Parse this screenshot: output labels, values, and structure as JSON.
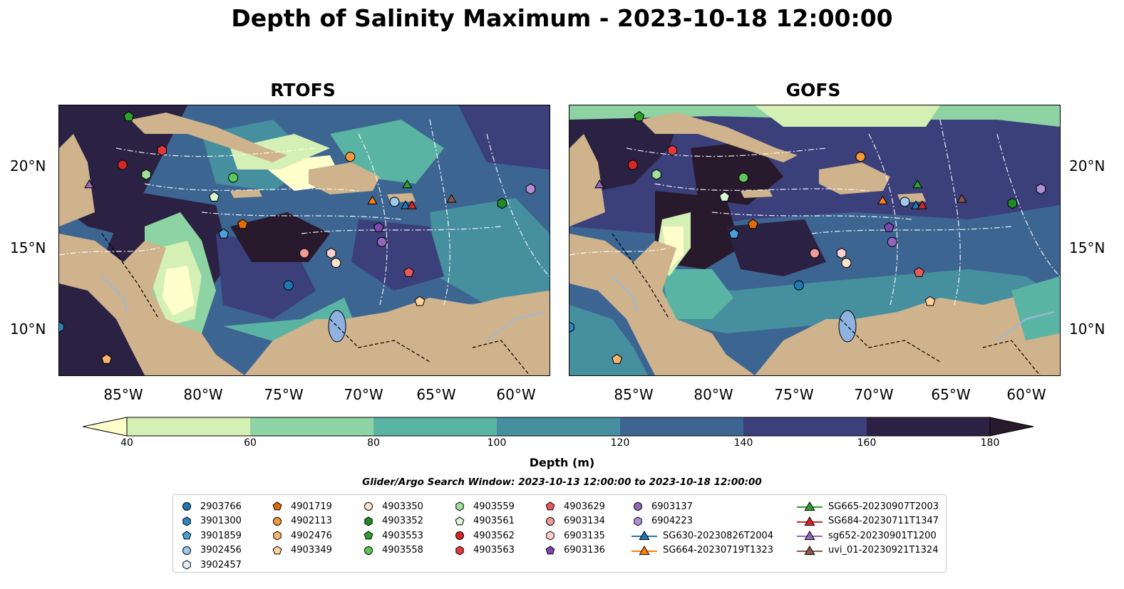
{
  "title": "Depth of Salinity Maximum - 2023-10-18 12:00:00",
  "panels": [
    {
      "title": "RTOFS"
    },
    {
      "title": "GOFS"
    }
  ],
  "y_ticks": [
    "20°N",
    "15°N",
    "10°N"
  ],
  "x_ticks": [
    "85°W",
    "80°W",
    "75°W",
    "70°W",
    "65°W",
    "60°W"
  ],
  "colorbar": {
    "label": "Depth (m)",
    "ticks": [
      "40",
      "60",
      "80",
      "100",
      "120",
      "140",
      "160",
      "180"
    ],
    "colors": [
      "#ffffcc",
      "#d4f0b4",
      "#8ed3a3",
      "#5ab4a4",
      "#468f9f",
      "#3d6592",
      "#3b3f7a",
      "#2b2142",
      "#281a2c"
    ]
  },
  "search_window": "Glider/Argo Search Window: 2023-10-13 12:00:00 to 2023-10-18 12:00:00",
  "legend": {
    "columns": [
      [
        {
          "label": "2903766",
          "marker": "circle",
          "color": "#1f77b4"
        },
        {
          "label": "3901300",
          "marker": "hexagon",
          "color": "#2e86c1"
        },
        {
          "label": "3901859",
          "marker": "pentagon",
          "color": "#4a9fd8"
        },
        {
          "label": "3902456",
          "marker": "circle",
          "color": "#9cc8ee"
        },
        {
          "label": "3902457",
          "marker": "hexagon",
          "color": "#dceefc"
        }
      ],
      [
        {
          "label": "4901719",
          "marker": "pentagon",
          "color": "#e06c00"
        },
        {
          "label": "4902113",
          "marker": "circle",
          "color": "#f59a3a"
        },
        {
          "label": "4902476",
          "marker": "hexagon",
          "color": "#f7b46a"
        },
        {
          "label": "4903349",
          "marker": "pentagon",
          "color": "#fcd39c"
        }
      ],
      [
        {
          "label": "4903350",
          "marker": "circle",
          "color": "#fde4c8"
        },
        {
          "label": "4903352",
          "marker": "hexagon",
          "color": "#1e8a2a"
        },
        {
          "label": "4903553",
          "marker": "pentagon",
          "color": "#2ca02c"
        },
        {
          "label": "4903558",
          "marker": "circle",
          "color": "#5cc85c"
        }
      ],
      [
        {
          "label": "4903559",
          "marker": "hexagon",
          "color": "#9ee09a"
        },
        {
          "label": "4903561",
          "marker": "pentagon",
          "color": "#d9f5d2"
        },
        {
          "label": "4903562",
          "marker": "circle",
          "color": "#d62728"
        },
        {
          "label": "4903563",
          "marker": "hexagon",
          "color": "#e03a3a"
        }
      ],
      [
        {
          "label": "4903629",
          "marker": "pentagon",
          "color": "#e85a5a"
        },
        {
          "label": "6903134",
          "marker": "circle",
          "color": "#f19a9a"
        },
        {
          "label": "6903135",
          "marker": "hexagon",
          "color": "#fcd0d0"
        },
        {
          "label": "6903136",
          "marker": "pentagon",
          "color": "#7b4ab0"
        }
      ],
      [
        {
          "label": "6903137",
          "marker": "circle",
          "color": "#9467bd"
        },
        {
          "label": "6904223",
          "marker": "hexagon",
          "color": "#b08fd6"
        },
        {
          "label": "SG630-20230826T2004",
          "marker": "triangle-line",
          "color": "#1f77b4"
        },
        {
          "label": "SG664-20230719T1323",
          "marker": "triangle-line",
          "color": "#ff7f0e"
        }
      ],
      [
        {
          "label": "SG665-20230907T2003",
          "marker": "triangle-line",
          "color": "#2ca02c"
        },
        {
          "label": "SG684-20230711T1347",
          "marker": "triangle-line",
          "color": "#d62728"
        },
        {
          "label": "sg652-20230901T1200",
          "marker": "triangle-line",
          "color": "#9467bd"
        },
        {
          "label": "uvi_01-20230921T1324",
          "marker": "triangle-line",
          "color": "#8c564b"
        }
      ]
    ]
  },
  "map_colors": {
    "land": "#cfb38c",
    "lake": "#8fb2e0",
    "river": "#9fb8d8"
  },
  "markers": [
    {
      "lon": -85.0,
      "lat": 20.1,
      "shape": "circle",
      "color": "#d62728"
    },
    {
      "lon": -82.5,
      "lat": 21.0,
      "shape": "hexagon",
      "color": "#e03a3a"
    },
    {
      "lon": -84.6,
      "lat": 23.1,
      "shape": "pentagon",
      "color": "#2ca02c"
    },
    {
      "lon": -83.5,
      "lat": 19.5,
      "shape": "hexagon",
      "color": "#9ee09a"
    },
    {
      "lon": -78.0,
      "lat": 19.3,
      "shape": "circle",
      "color": "#5cc85c"
    },
    {
      "lon": -79.2,
      "lat": 18.1,
      "shape": "pentagon",
      "color": "#d9f5d2"
    },
    {
      "lon": -70.6,
      "lat": 20.6,
      "shape": "circle",
      "color": "#f59a3a"
    },
    {
      "lon": -77.4,
      "lat": 16.4,
      "shape": "pentagon",
      "color": "#e06c00"
    },
    {
      "lon": -78.6,
      "lat": 15.8,
      "shape": "pentagon",
      "color": "#4a9fd8"
    },
    {
      "lon": -73.5,
      "lat": 14.6,
      "shape": "circle",
      "color": "#f19a9a"
    },
    {
      "lon": -71.8,
      "lat": 14.6,
      "shape": "hexagon",
      "color": "#fcd0d0"
    },
    {
      "lon": -71.5,
      "lat": 14.0,
      "shape": "circle",
      "color": "#fde4c8"
    },
    {
      "lon": -74.5,
      "lat": 12.6,
      "shape": "circle",
      "color": "#1f77b4"
    },
    {
      "lon": -68.8,
      "lat": 16.2,
      "shape": "pentagon",
      "color": "#7b4ab0"
    },
    {
      "lon": -68.6,
      "lat": 15.3,
      "shape": "circle",
      "color": "#9467bd"
    },
    {
      "lon": -67.8,
      "lat": 17.8,
      "shape": "circle",
      "color": "#9cc8ee"
    },
    {
      "lon": -66.9,
      "lat": 13.4,
      "shape": "pentagon",
      "color": "#e85a5a"
    },
    {
      "lon": -66.2,
      "lat": 11.6,
      "shape": "pentagon",
      "color": "#fcd39c"
    },
    {
      "lon": -61.0,
      "lat": 17.7,
      "shape": "hexagon",
      "color": "#1e8a2a"
    },
    {
      "lon": -59.2,
      "lat": 18.6,
      "shape": "hexagon",
      "color": "#b08fd6"
    },
    {
      "lon": -89.0,
      "lat": 10.0,
      "shape": "hexagon",
      "color": "#2e86c1"
    },
    {
      "lon": -86.0,
      "lat": 8.0,
      "shape": "pentagon",
      "color": "#f7b46a"
    },
    {
      "lon": -69.2,
      "lat": 17.9,
      "shape": "triangle",
      "color": "#ff7f0e"
    },
    {
      "lon": -67.0,
      "lat": 18.9,
      "shape": "triangle",
      "color": "#2ca02c"
    },
    {
      "lon": -67.1,
      "lat": 17.6,
      "shape": "triangle",
      "color": "#1f77b4"
    },
    {
      "lon": -66.7,
      "lat": 17.6,
      "shape": "triangle",
      "color": "#d62728"
    },
    {
      "lon": -64.2,
      "lat": 18.0,
      "shape": "triangle",
      "color": "#8c564b"
    },
    {
      "lon": -87.1,
      "lat": 18.9,
      "shape": "triangle",
      "color": "#9467bd"
    }
  ]
}
